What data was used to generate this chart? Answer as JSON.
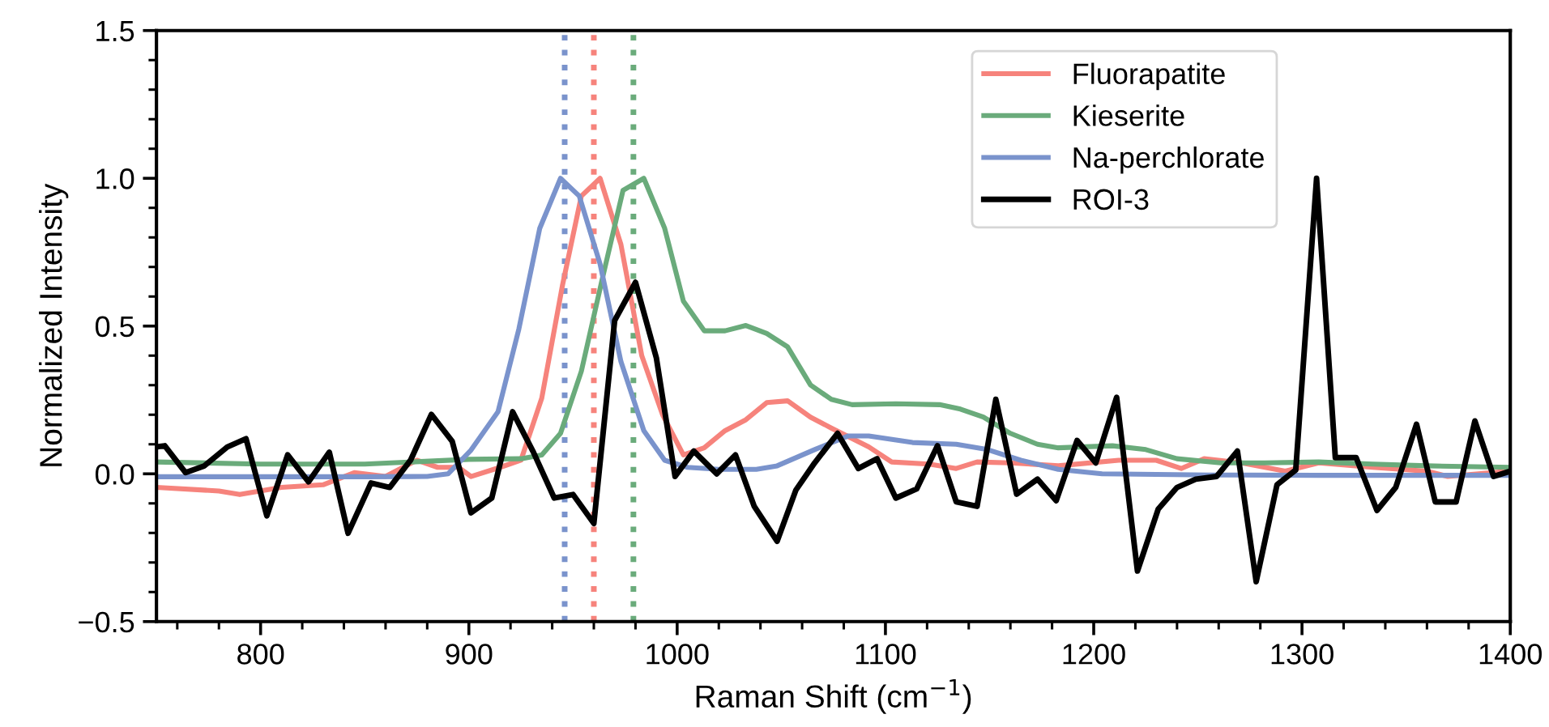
{
  "chart_data": {
    "type": "line",
    "xlabel": "Raman Shift (cm$^{−1}$)",
    "ylabel": "Normalized Intensity",
    "xlim": [
      750,
      1400
    ],
    "ylim": [
      -0.5,
      1.5
    ],
    "xticks": [
      {
        "value": 760,
        "label": null
      },
      {
        "value": 780,
        "label": null
      },
      800,
      {
        "value": 820,
        "label": null
      },
      {
        "value": 840,
        "label": null
      },
      {
        "value": 860,
        "label": null
      },
      {
        "value": 880,
        "label": null
      },
      900,
      {
        "value": 920,
        "label": null
      },
      {
        "value": 940,
        "label": null
      },
      {
        "value": 960,
        "label": null
      },
      {
        "value": 980,
        "label": null
      },
      1000,
      {
        "value": 1020,
        "label": null
      },
      {
        "value": 1040,
        "label": null
      },
      {
        "value": 1060,
        "label": null
      },
      {
        "value": 1080,
        "label": null
      },
      1100,
      {
        "value": 1120,
        "label": null
      },
      {
        "value": 1140,
        "label": null
      },
      {
        "value": 1160,
        "label": null
      },
      {
        "value": 1180,
        "label": null
      },
      1200,
      {
        "value": 1220,
        "label": null
      },
      {
        "value": 1240,
        "label": null
      },
      {
        "value": 1260,
        "label": null
      },
      {
        "value": 1280,
        "label": null
      },
      1300,
      {
        "value": 1320,
        "label": null
      },
      {
        "value": 1340,
        "label": null
      },
      {
        "value": 1360,
        "label": null
      },
      {
        "value": 1380,
        "label": null
      },
      1400
    ],
    "yticks": [
      {
        "value": -0.5,
        "label": "−0.5"
      },
      {
        "value": -0.4,
        "label": null
      },
      {
        "value": -0.3,
        "label": null
      },
      {
        "value": -0.2,
        "label": null
      },
      {
        "value": -0.1,
        "label": null
      },
      {
        "value": 0,
        "label": "0.0"
      },
      {
        "value": 0.1,
        "label": null
      },
      {
        "value": 0.2,
        "label": null
      },
      {
        "value": 0.3,
        "label": null
      },
      {
        "value": 0.4,
        "label": null
      },
      0.5,
      {
        "value": 0.6,
        "label": null
      },
      {
        "value": 0.7,
        "label": null
      },
      {
        "value": 0.8,
        "label": null
      },
      {
        "value": 0.9,
        "label": null
      },
      {
        "value": 1.0,
        "label": "1.0"
      },
      {
        "value": 1.1,
        "label": null
      },
      {
        "value": 1.2,
        "label": null
      },
      {
        "value": 1.3,
        "label": null
      },
      {
        "value": 1.4,
        "label": null
      },
      1.5
    ],
    "grid": false,
    "legend": "top",
    "marker": "none",
    "line_style": "solid",
    "series": [
      {
        "name": "Fluorapatite",
        "color": "#f6837c",
        "x": [
          750,
          780,
          790,
          810,
          830,
          845,
          860,
          875,
          885,
          895,
          901,
          915,
          925,
          935,
          945,
          954,
          963,
          973,
          983,
          993,
          1003,
          1013,
          1023,
          1033,
          1043,
          1053,
          1064,
          1074,
          1092,
          1103,
          1121,
          1134,
          1144,
          1160,
          1183,
          1212,
          1230,
          1242,
          1253,
          1271,
          1292,
          1308,
          1334,
          1360,
          1370,
          1400
        ],
        "values": [
          -0.046,
          -0.058,
          -0.07,
          -0.046,
          -0.037,
          0.004,
          -0.009,
          0.046,
          0.022,
          0.022,
          -0.009,
          0.022,
          0.046,
          0.256,
          0.64,
          0.94,
          1.0,
          0.776,
          0.4,
          0.2,
          0.064,
          0.088,
          0.146,
          0.183,
          0.241,
          0.247,
          0.192,
          0.155,
          0.091,
          0.04,
          0.033,
          0.018,
          0.04,
          0.037,
          0.027,
          0.046,
          0.046,
          0.018,
          0.051,
          0.037,
          0.009,
          0.037,
          0.022,
          0.009,
          -0.009,
          0.009
        ]
      },
      {
        "name": "Kieserite",
        "color": "#6aab7b",
        "x": [
          750,
          800,
          850,
          900,
          925,
          935,
          944,
          954,
          964,
          974,
          984,
          994,
          1003,
          1013,
          1023,
          1033,
          1043,
          1053,
          1064,
          1074,
          1084,
          1105,
          1126,
          1136,
          1147,
          1160,
          1173,
          1183,
          1209,
          1225,
          1240,
          1261,
          1282,
          1308,
          1334,
          1360,
          1400
        ],
        "values": [
          0.04,
          0.033,
          0.033,
          0.049,
          0.051,
          0.064,
          0.137,
          0.347,
          0.658,
          0.959,
          1.0,
          0.831,
          0.584,
          0.484,
          0.484,
          0.502,
          0.475,
          0.43,
          0.301,
          0.252,
          0.234,
          0.237,
          0.234,
          0.219,
          0.192,
          0.137,
          0.1,
          0.088,
          0.095,
          0.082,
          0.051,
          0.037,
          0.037,
          0.04,
          0.033,
          0.027,
          0.022
        ]
      },
      {
        "name": "Na-perchlorate",
        "color": "#7a93cc",
        "x": [
          750,
          800,
          850,
          880,
          890,
          901,
          914,
          924,
          934,
          944,
          953,
          963,
          973,
          984,
          994,
          1005,
          1020,
          1038,
          1048,
          1066,
          1082,
          1092,
          1113,
          1134,
          1149,
          1165,
          1183,
          1204,
          1256,
          1308,
          1400
        ],
        "values": [
          -0.01,
          -0.01,
          -0.01,
          -0.009,
          0.0,
          0.08,
          0.21,
          0.49,
          0.83,
          1.0,
          0.94,
          0.71,
          0.38,
          0.146,
          0.046,
          0.022,
          0.015,
          0.015,
          0.027,
          0.082,
          0.128,
          0.128,
          0.106,
          0.1,
          0.082,
          0.046,
          0.015,
          0.0,
          -0.004,
          -0.005,
          -0.005
        ]
      },
      {
        "name": "ROI-3",
        "color": "#000000",
        "x": [
          750,
          754,
          764,
          773,
          784,
          793,
          803,
          813,
          823,
          833,
          842,
          853,
          862,
          872,
          882,
          892,
          901,
          911,
          921,
          931,
          941,
          950,
          960,
          970,
          980,
          990,
          999,
          1008,
          1019,
          1028,
          1037,
          1048,
          1057,
          1066,
          1077,
          1087,
          1096,
          1105,
          1115,
          1125,
          1134,
          1144,
          1153,
          1163,
          1173,
          1182,
          1192,
          1201,
          1211,
          1221,
          1231,
          1240,
          1249,
          1259,
          1269,
          1278,
          1288,
          1297,
          1307,
          1316,
          1326,
          1336,
          1345,
          1355,
          1364,
          1374,
          1383,
          1392,
          1400
        ],
        "values": [
          0.091,
          0.095,
          0.004,
          0.027,
          0.091,
          0.119,
          -0.142,
          0.064,
          -0.027,
          0.073,
          -0.201,
          -0.031,
          -0.046,
          0.046,
          0.201,
          0.11,
          -0.132,
          -0.082,
          0.21,
          0.073,
          -0.082,
          -0.07,
          -0.168,
          0.519,
          0.648,
          0.393,
          -0.009,
          0.077,
          0.0,
          0.064,
          -0.11,
          -0.228,
          -0.055,
          0.037,
          0.137,
          0.018,
          0.051,
          -0.082,
          -0.051,
          0.095,
          -0.095,
          -0.11,
          0.252,
          -0.069,
          -0.018,
          -0.091,
          0.113,
          0.037,
          0.259,
          -0.329,
          -0.119,
          -0.046,
          -0.018,
          -0.009,
          0.077,
          -0.365,
          -0.037,
          0.013,
          1.0,
          0.055,
          0.055,
          -0.124,
          -0.046,
          0.168,
          -0.095,
          -0.095,
          0.179,
          -0.009,
          0.009
        ]
      }
    ],
    "ref_lines": [
      {
        "axis": "x",
        "value": 946,
        "color": "#7a93cc",
        "line_style": "dotted"
      },
      {
        "axis": "x",
        "value": 960,
        "color": "#f6837c",
        "line_style": "dotted"
      },
      {
        "axis": "x",
        "value": 979,
        "color": "#6aab7b",
        "line_style": "dotted"
      }
    ]
  }
}
